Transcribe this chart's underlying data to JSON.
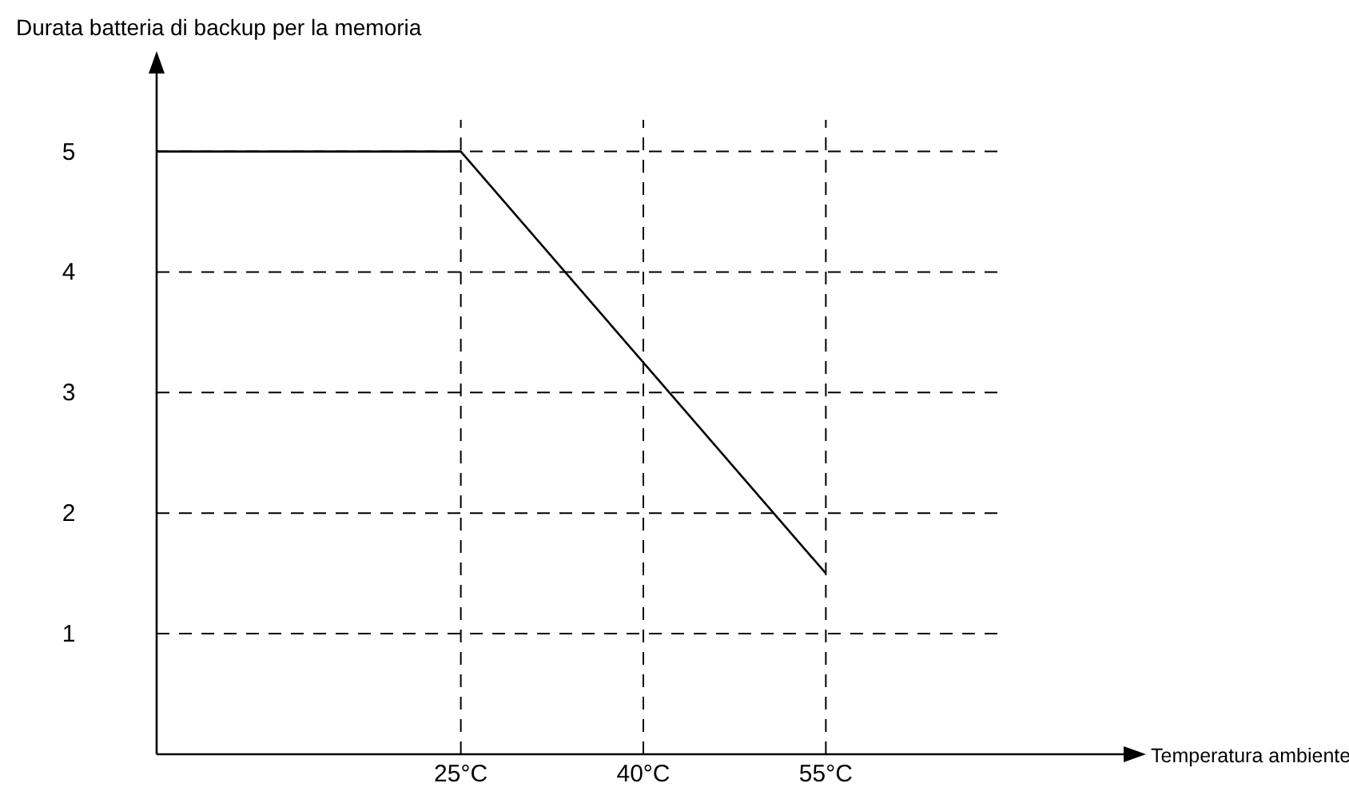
{
  "chart_data": {
    "type": "line",
    "xlabel": "Temperatura ambiente",
    "ylabel": "Durata batteria di backup per la memoria",
    "xlim": [
      0,
      80
    ],
    "ylim": [
      0,
      5.7
    ],
    "xticks": [
      {
        "value": 25,
        "label": "25°C"
      },
      {
        "value": 40,
        "label": "40°C"
      },
      {
        "value": 55,
        "label": "55°C"
      }
    ],
    "yticks": [
      1,
      2,
      3,
      4,
      5
    ],
    "grid": true,
    "marker": "none",
    "line_style": "solid",
    "series": [
      {
        "color": "#000000",
        "x": [
          0,
          25,
          55
        ],
        "values": [
          5,
          5,
          1.5
        ]
      }
    ]
  }
}
